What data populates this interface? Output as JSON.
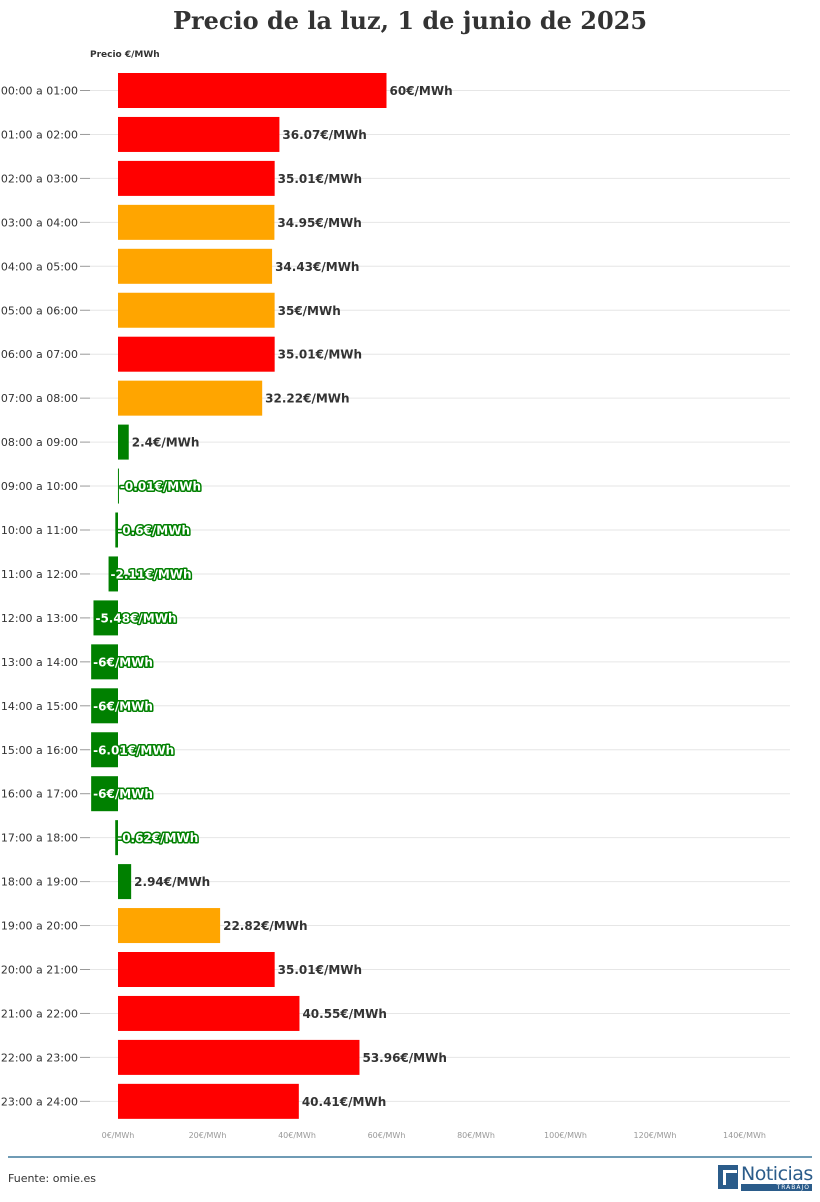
{
  "chart_data": {
    "type": "bar",
    "orientation": "horizontal",
    "title": "Precio de la luz, 1 de junio de 2025",
    "xlabel": "Precio €/MWh",
    "unit": "€/MWh",
    "xlim": [
      -6,
      150
    ],
    "xticks": [
      0,
      20,
      40,
      60,
      80,
      100,
      120,
      140
    ],
    "xtick_labels": [
      "0€/MWh",
      "20€/MWh",
      "40€/MWh",
      "60€/MWh",
      "80€/MWh",
      "100€/MWh",
      "120€/MWh",
      "140€/MWh"
    ],
    "grid": true,
    "colors": {
      "red": "#ff0000",
      "orange": "#ffa500",
      "green": "#008000"
    },
    "categories": [
      "00:00 a 01:00",
      "01:00 a 02:00",
      "02:00 a 03:00",
      "03:00 a 04:00",
      "04:00 a 05:00",
      "05:00 a 06:00",
      "06:00 a 07:00",
      "07:00 a 08:00",
      "08:00 a 09:00",
      "09:00 a 10:00",
      "10:00 a 11:00",
      "11:00 a 12:00",
      "12:00 a 13:00",
      "13:00 a 14:00",
      "14:00 a 15:00",
      "15:00 a 16:00",
      "16:00 a 17:00",
      "17:00 a 18:00",
      "18:00 a 19:00",
      "19:00 a 20:00",
      "20:00 a 21:00",
      "21:00 a 22:00",
      "22:00 a 23:00",
      "23:00 a 24:00"
    ],
    "values": [
      60,
      36.07,
      35.01,
      34.95,
      34.43,
      35,
      35.01,
      32.22,
      2.4,
      -0.01,
      -0.6,
      -2.11,
      -5.48,
      -6,
      -6,
      -6.01,
      -6,
      -0.62,
      2.94,
      22.82,
      35.01,
      40.55,
      53.96,
      40.41
    ],
    "value_labels": [
      "60€/MWh",
      "36.07€/MWh",
      "35.01€/MWh",
      "34.95€/MWh",
      "34.43€/MWh",
      "35€/MWh",
      "35.01€/MWh",
      "32.22€/MWh",
      "2.4€/MWh",
      "-0.01€/MWh",
      "-0.6€/MWh",
      "-2.11€/MWh",
      "-5.48€/MWh",
      "-6€/MWh",
      "-6€/MWh",
      "-6.01€/MWh",
      "-6€/MWh",
      "-0.62€/MWh",
      "2.94€/MWh",
      "22.82€/MWh",
      "35.01€/MWh",
      "40.55€/MWh",
      "53.96€/MWh",
      "40.41€/MWh"
    ],
    "bar_colors": [
      "red",
      "red",
      "red",
      "orange",
      "orange",
      "orange",
      "red",
      "orange",
      "green",
      "green",
      "green",
      "green",
      "green",
      "green",
      "green",
      "green",
      "green",
      "green",
      "green",
      "orange",
      "red",
      "red",
      "red",
      "red"
    ]
  },
  "footer": {
    "source": "Fuente: omie.es",
    "brand_name": "Noticias",
    "brand_sub": "TRABAJO"
  }
}
